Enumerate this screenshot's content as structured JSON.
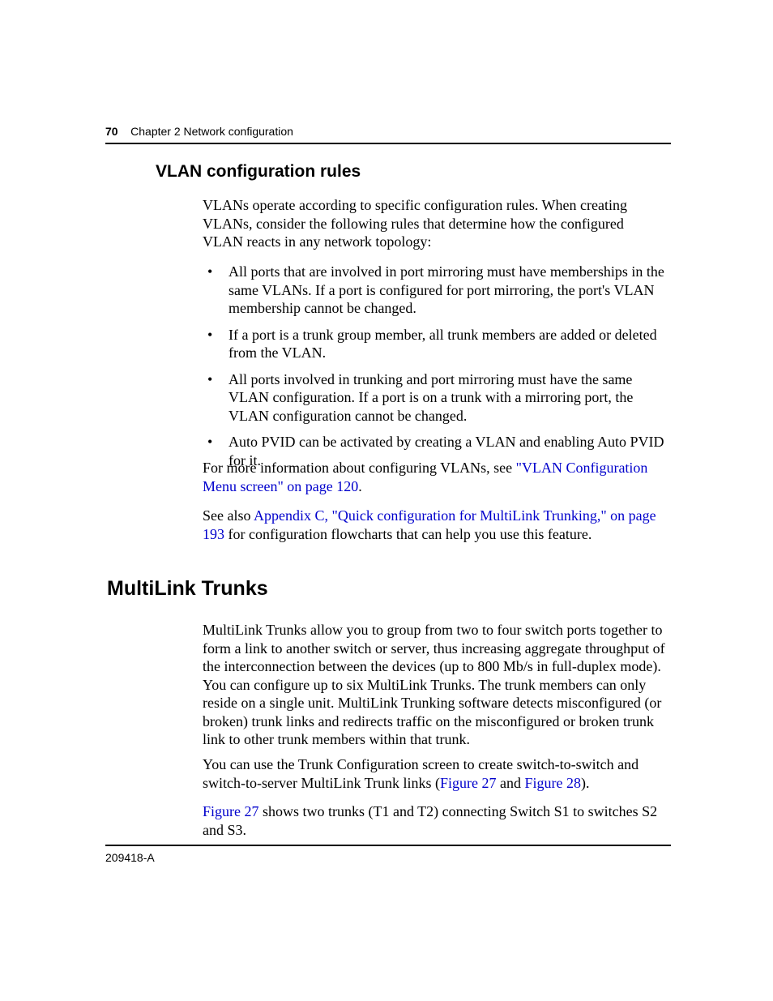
{
  "header": {
    "page_number": "70",
    "chapter": "Chapter 2  Network configuration"
  },
  "section1": {
    "heading": "VLAN configuration rules",
    "intro": "VLANs operate according to specific configuration rules. When creating VLANs, consider the following rules that determine how the configured VLAN reacts in any network topology:",
    "bullets": {
      "b1": "All ports that are involved in port mirroring must have memberships in the same VLANs. If a port is configured for port mirroring, the port's VLAN membership cannot be changed.",
      "b2": "If a port is a trunk group member, all trunk members are added or deleted from the VLAN.",
      "b3": "All ports involved in trunking and port mirroring must have the same VLAN configuration. If a port is on a trunk with a mirroring port, the VLAN configuration cannot be changed.",
      "b4": "Auto PVID can be activated by creating a VLAN and enabling Auto PVID for it."
    },
    "more_pre": "For more information about configuring VLANs, see ",
    "more_link": "\"VLAN Configuration Menu screen\" on page 120",
    "more_post": ".",
    "seealso_pre": "See also ",
    "seealso_link": "Appendix C, \"Quick configuration for MultiLink Trunking,\" on page 193",
    "seealso_post": " for configuration flowcharts that can help you use this feature."
  },
  "section2": {
    "heading": "MultiLink Trunks",
    "para1": "MultiLink Trunks allow you to group from two to four switch ports together to form a link to another switch or server, thus increasing aggregate throughput of the interconnection between the devices (up to 800 Mb/s in full-duplex mode). You can configure up to six MultiLink Trunks. The trunk members can only reside on a single unit. MultiLink Trunking software detects misconfigured (or broken) trunk links and redirects traffic on the misconfigured or broken trunk link to other trunk members within that trunk.",
    "para2_pre": "You can use the Trunk Configuration screen to create switch-to-switch and switch-to-server MultiLink Trunk links (",
    "para2_link1": "Figure 27",
    "para2_mid": " and ",
    "para2_link2": "Figure 28",
    "para2_post": ").",
    "para3_link": "Figure 27",
    "para3_post": " shows two trunks (T1 and T2) connecting Switch S1 to switches S2 and  S3."
  },
  "footer": {
    "docid": "209418-A"
  },
  "colors": {
    "link": "#0000cc",
    "text": "#000000",
    "background": "#ffffff",
    "rule": "#000000"
  },
  "fonts": {
    "heading_family": "Arial",
    "body_family": "Times New Roman",
    "h1_size_pt": 19,
    "h2_size_pt": 16,
    "body_size_pt": 13.5,
    "header_size_pt": 10.5
  }
}
